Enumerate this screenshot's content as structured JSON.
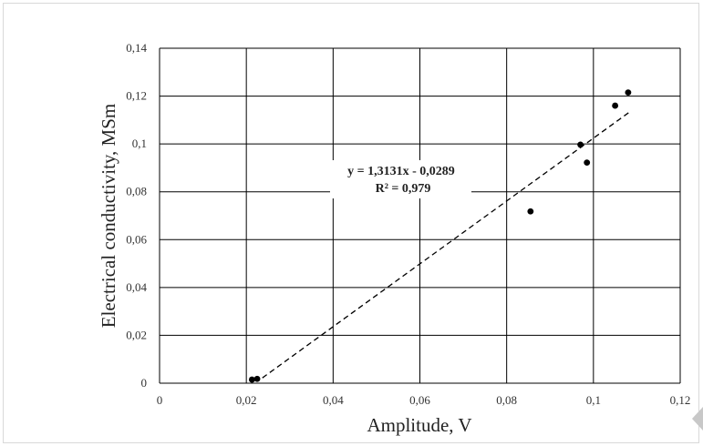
{
  "chart_data": {
    "type": "scatter",
    "xlabel": "Amplitude, V",
    "ylabel": "Electrical conductivity, MSm",
    "xlim": [
      0,
      0.12
    ],
    "ylim": [
      0,
      0.14
    ],
    "x_ticks": [
      0,
      0.02,
      0.04,
      0.06,
      0.08,
      0.1,
      0.12
    ],
    "y_ticks": [
      0,
      0.02,
      0.04,
      0.06,
      0.08,
      0.1,
      0.12,
      0.14
    ],
    "x_tick_labels": [
      "0",
      "0,02",
      "0,04",
      "0,06",
      "0,08",
      "0,1",
      "0,12"
    ],
    "y_tick_labels": [
      "0",
      "0,02",
      "0,04",
      "0,06",
      "0,08",
      "0,1",
      "0,12",
      "0,14"
    ],
    "grid": true,
    "series": [
      {
        "points": [
          {
            "x": 0.0213,
            "y": 0.0015
          },
          {
            "x": 0.0225,
            "y": 0.0018
          },
          {
            "x": 0.0855,
            "y": 0.0718
          },
          {
            "x": 0.097,
            "y": 0.0997
          },
          {
            "x": 0.0985,
            "y": 0.0922
          },
          {
            "x": 0.105,
            "y": 0.116
          },
          {
            "x": 0.108,
            "y": 0.1215
          }
        ],
        "color": "#000000"
      }
    ],
    "trendline": {
      "slope": 1.3131,
      "intercept": -0.0289,
      "x_range": [
        0.0237,
        0.1085
      ],
      "style": "dashed",
      "equation": "y = 1,3131x - 0,0289",
      "r_squared": "R² = 0,979"
    }
  }
}
